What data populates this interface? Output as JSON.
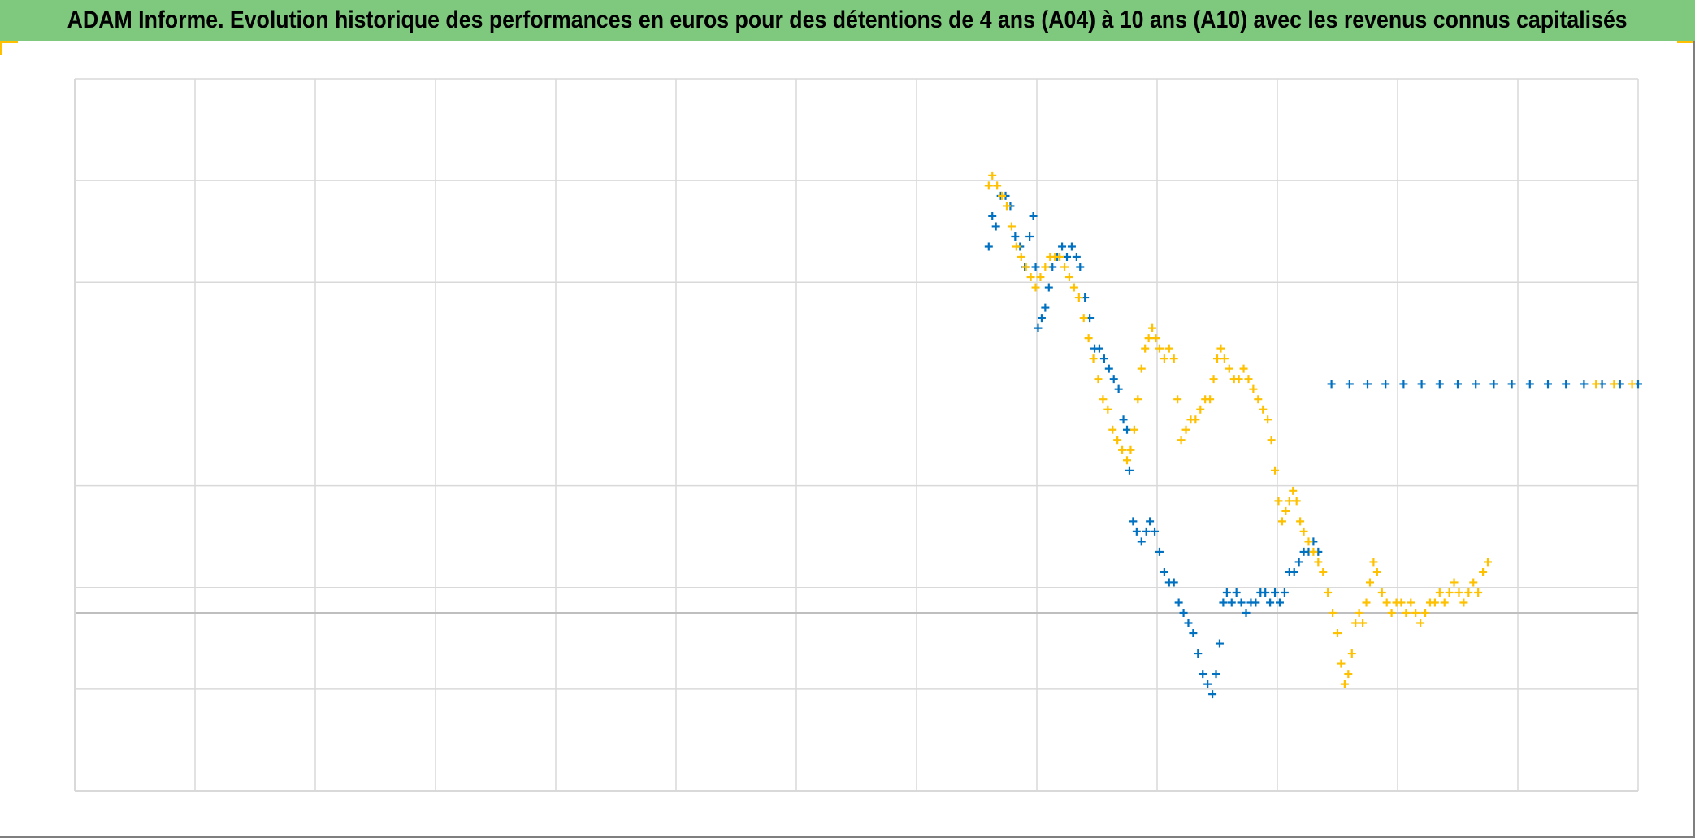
{
  "title": "ADAM Informe. Evolution historique des performances en euros pour des détentions de 4 ans (A04) à 10 ans (A10) avec les revenus connus capitalisés",
  "colors": {
    "title_bar": "#7ec97e",
    "corner_accent": "#ffc000",
    "gridline": "#d9d9d9",
    "zero_line": "#bfbfbf",
    "frame": "#7f7f7f"
  },
  "chart_data": {
    "type": "scatter",
    "marker": "plus",
    "grid": true,
    "xlim": [
      0,
      13
    ],
    "ylim": [
      -0.175,
      0.525
    ],
    "x_gridlines": [
      0,
      1,
      2,
      3,
      4,
      5,
      6,
      7,
      8,
      9,
      10,
      11,
      12,
      13
    ],
    "y_gridlines": [
      -0.175,
      -0.075,
      0.025,
      0.125,
      0.325,
      0.425,
      0.525
    ],
    "zero_line": 0,
    "series": [
      {
        "color": "#0070c0",
        "points": [
          [
            7.6,
            0.36
          ],
          [
            7.63,
            0.39
          ],
          [
            7.66,
            0.38
          ],
          [
            7.7,
            0.41
          ],
          [
            7.74,
            0.41
          ],
          [
            7.78,
            0.4
          ],
          [
            7.82,
            0.37
          ],
          [
            7.86,
            0.36
          ],
          [
            7.9,
            0.34
          ],
          [
            7.94,
            0.37
          ],
          [
            7.97,
            0.39
          ],
          [
            7.99,
            0.34
          ],
          [
            8.01,
            0.28
          ],
          [
            8.04,
            0.29
          ],
          [
            8.07,
            0.3
          ],
          [
            8.1,
            0.32
          ],
          [
            8.13,
            0.34
          ],
          [
            8.17,
            0.35
          ],
          [
            8.21,
            0.36
          ],
          [
            8.25,
            0.35
          ],
          [
            8.29,
            0.36
          ],
          [
            8.33,
            0.35
          ],
          [
            8.36,
            0.34
          ],
          [
            8.4,
            0.31
          ],
          [
            8.44,
            0.29
          ],
          [
            8.48,
            0.26
          ],
          [
            8.52,
            0.26
          ],
          [
            8.56,
            0.25
          ],
          [
            8.6,
            0.24
          ],
          [
            8.64,
            0.23
          ],
          [
            8.68,
            0.22
          ],
          [
            8.72,
            0.19
          ],
          [
            8.75,
            0.18
          ],
          [
            8.77,
            0.14
          ],
          [
            8.8,
            0.09
          ],
          [
            8.83,
            0.08
          ],
          [
            8.87,
            0.07
          ],
          [
            8.91,
            0.08
          ],
          [
            8.94,
            0.09
          ],
          [
            8.98,
            0.08
          ],
          [
            9.02,
            0.06
          ],
          [
            9.06,
            0.04
          ],
          [
            9.1,
            0.03
          ],
          [
            9.14,
            0.03
          ],
          [
            9.18,
            0.01
          ],
          [
            9.22,
            0.0
          ],
          [
            9.26,
            -0.01
          ],
          [
            9.3,
            -0.02
          ],
          [
            9.34,
            -0.04
          ],
          [
            9.38,
            -0.06
          ],
          [
            9.42,
            -0.07
          ],
          [
            9.46,
            -0.08
          ],
          [
            9.49,
            -0.06
          ],
          [
            9.52,
            -0.03
          ],
          [
            9.55,
            0.01
          ],
          [
            9.58,
            0.02
          ],
          [
            9.62,
            0.01
          ],
          [
            9.66,
            0.02
          ],
          [
            9.7,
            0.01
          ],
          [
            9.74,
            0.0
          ],
          [
            9.78,
            0.01
          ],
          [
            9.82,
            0.01
          ],
          [
            9.86,
            0.02
          ],
          [
            9.9,
            0.02
          ],
          [
            9.94,
            0.01
          ],
          [
            9.98,
            0.02
          ],
          [
            10.02,
            0.01
          ],
          [
            10.06,
            0.02
          ],
          [
            10.1,
            0.04
          ],
          [
            10.14,
            0.04
          ],
          [
            10.18,
            0.05
          ],
          [
            10.22,
            0.06
          ],
          [
            10.26,
            0.06
          ],
          [
            10.3,
            0.07
          ],
          [
            10.34,
            0.06
          ],
          [
            10.45,
            0.225
          ],
          [
            10.6,
            0.225
          ],
          [
            10.75,
            0.225
          ],
          [
            10.9,
            0.225
          ],
          [
            11.05,
            0.225
          ],
          [
            11.2,
            0.225
          ],
          [
            11.35,
            0.225
          ],
          [
            11.5,
            0.225
          ],
          [
            11.65,
            0.225
          ],
          [
            11.8,
            0.225
          ],
          [
            11.95,
            0.225
          ],
          [
            12.1,
            0.225
          ],
          [
            12.25,
            0.225
          ],
          [
            12.4,
            0.225
          ],
          [
            12.55,
            0.225
          ],
          [
            12.7,
            0.225
          ],
          [
            12.85,
            0.225
          ],
          [
            13.0,
            0.225
          ]
        ]
      },
      {
        "color": "#ffc000",
        "points": [
          [
            7.6,
            0.42
          ],
          [
            7.63,
            0.43
          ],
          [
            7.67,
            0.42
          ],
          [
            7.71,
            0.41
          ],
          [
            7.75,
            0.4
          ],
          [
            7.79,
            0.38
          ],
          [
            7.83,
            0.36
          ],
          [
            7.87,
            0.35
          ],
          [
            7.91,
            0.34
          ],
          [
            7.95,
            0.33
          ],
          [
            7.99,
            0.32
          ],
          [
            8.03,
            0.33
          ],
          [
            8.07,
            0.34
          ],
          [
            8.11,
            0.35
          ],
          [
            8.15,
            0.35
          ],
          [
            8.19,
            0.35
          ],
          [
            8.23,
            0.34
          ],
          [
            8.27,
            0.33
          ],
          [
            8.31,
            0.32
          ],
          [
            8.35,
            0.31
          ],
          [
            8.39,
            0.29
          ],
          [
            8.43,
            0.27
          ],
          [
            8.47,
            0.25
          ],
          [
            8.51,
            0.23
          ],
          [
            8.55,
            0.21
          ],
          [
            8.59,
            0.2
          ],
          [
            8.63,
            0.18
          ],
          [
            8.67,
            0.17
          ],
          [
            8.71,
            0.16
          ],
          [
            8.75,
            0.15
          ],
          [
            8.78,
            0.16
          ],
          [
            8.81,
            0.18
          ],
          [
            8.84,
            0.21
          ],
          [
            8.87,
            0.24
          ],
          [
            8.9,
            0.26
          ],
          [
            8.93,
            0.27
          ],
          [
            8.96,
            0.28
          ],
          [
            8.99,
            0.27
          ],
          [
            9.02,
            0.26
          ],
          [
            9.06,
            0.25
          ],
          [
            9.1,
            0.26
          ],
          [
            9.14,
            0.25
          ],
          [
            9.17,
            0.21
          ],
          [
            9.2,
            0.17
          ],
          [
            9.24,
            0.18
          ],
          [
            9.28,
            0.19
          ],
          [
            9.32,
            0.19
          ],
          [
            9.36,
            0.2
          ],
          [
            9.4,
            0.21
          ],
          [
            9.44,
            0.21
          ],
          [
            9.47,
            0.23
          ],
          [
            9.5,
            0.25
          ],
          [
            9.53,
            0.26
          ],
          [
            9.56,
            0.25
          ],
          [
            9.6,
            0.24
          ],
          [
            9.64,
            0.23
          ],
          [
            9.68,
            0.23
          ],
          [
            9.72,
            0.24
          ],
          [
            9.76,
            0.23
          ],
          [
            9.8,
            0.22
          ],
          [
            9.84,
            0.21
          ],
          [
            9.88,
            0.2
          ],
          [
            9.92,
            0.19
          ],
          [
            9.95,
            0.17
          ],
          [
            9.98,
            0.14
          ],
          [
            10.01,
            0.11
          ],
          [
            10.04,
            0.09
          ],
          [
            10.07,
            0.1
          ],
          [
            10.1,
            0.11
          ],
          [
            10.13,
            0.12
          ],
          [
            10.16,
            0.11
          ],
          [
            10.19,
            0.09
          ],
          [
            10.22,
            0.08
          ],
          [
            10.26,
            0.07
          ],
          [
            10.3,
            0.06
          ],
          [
            10.34,
            0.05
          ],
          [
            10.38,
            0.04
          ],
          [
            10.42,
            0.02
          ],
          [
            10.46,
            0.0
          ],
          [
            10.5,
            -0.02
          ],
          [
            10.53,
            -0.05
          ],
          [
            10.56,
            -0.07
          ],
          [
            10.59,
            -0.06
          ],
          [
            10.62,
            -0.04
          ],
          [
            10.65,
            -0.01
          ],
          [
            10.68,
            0.0
          ],
          [
            10.71,
            -0.01
          ],
          [
            10.74,
            0.01
          ],
          [
            10.77,
            0.03
          ],
          [
            10.8,
            0.05
          ],
          [
            10.83,
            0.04
          ],
          [
            10.87,
            0.02
          ],
          [
            10.91,
            0.01
          ],
          [
            10.95,
            0.0
          ],
          [
            10.99,
            0.01
          ],
          [
            11.03,
            0.01
          ],
          [
            11.07,
            0.0
          ],
          [
            11.11,
            0.01
          ],
          [
            11.15,
            0.0
          ],
          [
            11.19,
            -0.01
          ],
          [
            11.23,
            0.0
          ],
          [
            11.27,
            0.01
          ],
          [
            11.31,
            0.01
          ],
          [
            11.35,
            0.02
          ],
          [
            11.39,
            0.01
          ],
          [
            11.43,
            0.02
          ],
          [
            11.47,
            0.03
          ],
          [
            11.51,
            0.02
          ],
          [
            11.55,
            0.01
          ],
          [
            11.59,
            0.02
          ],
          [
            11.63,
            0.03
          ],
          [
            11.67,
            0.02
          ],
          [
            11.71,
            0.04
          ],
          [
            11.75,
            0.05
          ],
          [
            12.65,
            0.225
          ],
          [
            12.8,
            0.225
          ],
          [
            12.95,
            0.225
          ]
        ]
      }
    ]
  }
}
